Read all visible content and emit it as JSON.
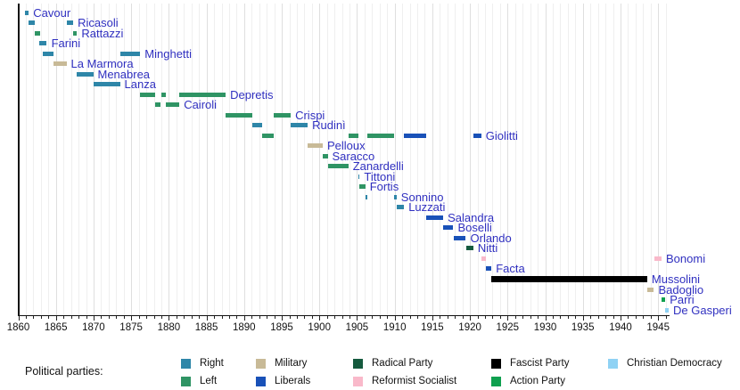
{
  "chart_data": {
    "type": "bar",
    "variant": "timeline-gantt",
    "title": "",
    "x_axis": {
      "min": 1860,
      "max": 1946.4,
      "major_tick_step": 5,
      "minor_tick_step": 1,
      "tick_labels": [
        1860,
        1865,
        1870,
        1875,
        1880,
        1885,
        1890,
        1895,
        1900,
        1905,
        1910,
        1915,
        1920,
        1925,
        1930,
        1935,
        1940,
        1945
      ],
      "grid": "on"
    },
    "label_color": "#3030C0",
    "axis_color": "#111111",
    "parties": [
      {
        "name": "Right",
        "color": "#2E86A8"
      },
      {
        "name": "Left",
        "color": "#2F9464"
      },
      {
        "name": "Military",
        "color": "#C8BA97"
      },
      {
        "name": "Liberals",
        "color": "#1951B8"
      },
      {
        "name": "Radical Party",
        "color": "#155A3E"
      },
      {
        "name": "Reformist Socialist",
        "color": "#F9B9CA"
      },
      {
        "name": "Fascist Party",
        "color": "#000000"
      },
      {
        "name": "Action Party",
        "color": "#0FA04F"
      },
      {
        "name": "Christian Democracy",
        "color": "#8FD2F4"
      }
    ],
    "ministers": [
      {
        "name": "Cavour",
        "terms": [
          {
            "start": 1860.9,
            "end": 1861.4,
            "party": "Right"
          }
        ]
      },
      {
        "name": "Ricasoli",
        "terms": [
          {
            "start": 1861.4,
            "end": 1862.2,
            "party": "Right"
          },
          {
            "start": 1866.4,
            "end": 1867.3,
            "party": "Right"
          }
        ]
      },
      {
        "name": "Rattazzi",
        "terms": [
          {
            "start": 1862.2,
            "end": 1862.95,
            "party": "Left"
          },
          {
            "start": 1867.3,
            "end": 1867.8,
            "party": "Left"
          }
        ]
      },
      {
        "name": "Farini",
        "terms": [
          {
            "start": 1862.8,
            "end": 1863.8,
            "party": "Right"
          }
        ]
      },
      {
        "name": "Minghetti",
        "terms": [
          {
            "start": 1863.25,
            "end": 1864.7,
            "party": "Right"
          },
          {
            "start": 1873.5,
            "end": 1876.2,
            "party": "Right"
          }
        ]
      },
      {
        "name": "La Marmora",
        "terms": [
          {
            "start": 1864.7,
            "end": 1866.4,
            "party": "Military"
          }
        ]
      },
      {
        "name": "Menabrea",
        "terms": [
          {
            "start": 1867.8,
            "end": 1869.95,
            "party": "Right"
          }
        ]
      },
      {
        "name": "Lanza",
        "terms": [
          {
            "start": 1869.95,
            "end": 1873.5,
            "party": "Right"
          }
        ]
      },
      {
        "name": "Depretis",
        "terms": [
          {
            "start": 1876.2,
            "end": 1878.2,
            "party": "Left"
          },
          {
            "start": 1878.95,
            "end": 1879.55,
            "party": "Left"
          },
          {
            "start": 1881.4,
            "end": 1887.55,
            "party": "Left"
          }
        ]
      },
      {
        "name": "Cairoli",
        "terms": [
          {
            "start": 1878.2,
            "end": 1878.95,
            "party": "Left"
          },
          {
            "start": 1879.55,
            "end": 1881.4,
            "party": "Left"
          }
        ]
      },
      {
        "name": "Crispi",
        "terms": [
          {
            "start": 1887.55,
            "end": 1891.1,
            "party": "Left"
          },
          {
            "start": 1893.95,
            "end": 1896.2,
            "party": "Left"
          }
        ]
      },
      {
        "name": "Rudinì",
        "terms": [
          {
            "start": 1891.1,
            "end": 1892.35,
            "party": "Right"
          },
          {
            "start": 1896.2,
            "end": 1898.45,
            "party": "Right"
          }
        ]
      },
      {
        "name": "Giolitti",
        "terms": [
          {
            "start": 1892.35,
            "end": 1893.95,
            "party": "Left"
          },
          {
            "start": 1903.85,
            "end": 1905.2,
            "party": "Left"
          },
          {
            "start": 1906.4,
            "end": 1909.95,
            "party": "Left"
          },
          {
            "start": 1911.25,
            "end": 1914.2,
            "party": "Liberals"
          },
          {
            "start": 1920.45,
            "end": 1921.5,
            "party": "Liberals"
          }
        ]
      },
      {
        "name": "Pelloux",
        "terms": [
          {
            "start": 1898.45,
            "end": 1900.45,
            "party": "Military"
          }
        ]
      },
      {
        "name": "Saracco",
        "terms": [
          {
            "start": 1900.45,
            "end": 1901.1,
            "party": "Left"
          }
        ]
      },
      {
        "name": "Zanardelli",
        "terms": [
          {
            "start": 1901.1,
            "end": 1903.85,
            "party": "Left"
          }
        ]
      },
      {
        "name": "Tittoni",
        "terms": [
          {
            "start": 1905.2,
            "end": 1905.35,
            "party": "Right"
          }
        ]
      },
      {
        "name": "Fortis",
        "terms": [
          {
            "start": 1905.35,
            "end": 1906.1,
            "party": "Left"
          }
        ]
      },
      {
        "name": "Sonnino",
        "terms": [
          {
            "start": 1906.1,
            "end": 1906.4,
            "party": "Right"
          },
          {
            "start": 1909.95,
            "end": 1910.25,
            "party": "Right"
          }
        ]
      },
      {
        "name": "Luzzati",
        "terms": [
          {
            "start": 1910.25,
            "end": 1911.25,
            "party": "Right"
          }
        ]
      },
      {
        "name": "Salandra",
        "terms": [
          {
            "start": 1914.2,
            "end": 1916.45,
            "party": "Liberals"
          }
        ]
      },
      {
        "name": "Boselli",
        "terms": [
          {
            "start": 1916.45,
            "end": 1917.8,
            "party": "Liberals"
          }
        ]
      },
      {
        "name": "Orlando",
        "terms": [
          {
            "start": 1917.8,
            "end": 1919.45,
            "party": "Liberals"
          }
        ]
      },
      {
        "name": "Nitti",
        "terms": [
          {
            "start": 1919.45,
            "end": 1920.45,
            "party": "Radical Party"
          }
        ]
      },
      {
        "name": "Bonomi",
        "terms": [
          {
            "start": 1921.5,
            "end": 1922.1,
            "party": "Reformist Socialist"
          },
          {
            "start": 1944.45,
            "end": 1945.45,
            "party": "Reformist Socialist"
          }
        ]
      },
      {
        "name": "Facta",
        "terms": [
          {
            "start": 1922.1,
            "end": 1922.85,
            "party": "Liberals"
          }
        ]
      },
      {
        "name": "Mussolini",
        "thick": true,
        "terms": [
          {
            "start": 1922.85,
            "end": 1943.55,
            "party": "Fascist Party"
          }
        ]
      },
      {
        "name": "Badoglio",
        "terms": [
          {
            "start": 1943.55,
            "end": 1944.45,
            "party": "Military"
          }
        ]
      },
      {
        "name": "Parri",
        "terms": [
          {
            "start": 1945.45,
            "end": 1945.95,
            "party": "Action Party"
          }
        ]
      },
      {
        "name": "De Gasperi",
        "terms": [
          {
            "start": 1945.95,
            "end": 1946.4,
            "party": "Christian Democracy"
          }
        ]
      }
    ],
    "legend": {
      "title": "Political parties:",
      "position": "bottom",
      "columns": [
        {
          "items": [
            "Right",
            "Left"
          ]
        },
        {
          "items": [
            "Military",
            "Liberals"
          ]
        },
        {
          "items": [
            "Radical Party",
            "Reformist Socialist"
          ]
        },
        {
          "items": [
            "Fascist Party",
            "Action Party"
          ]
        },
        {
          "items": [
            "Christian Democracy"
          ]
        }
      ]
    }
  }
}
